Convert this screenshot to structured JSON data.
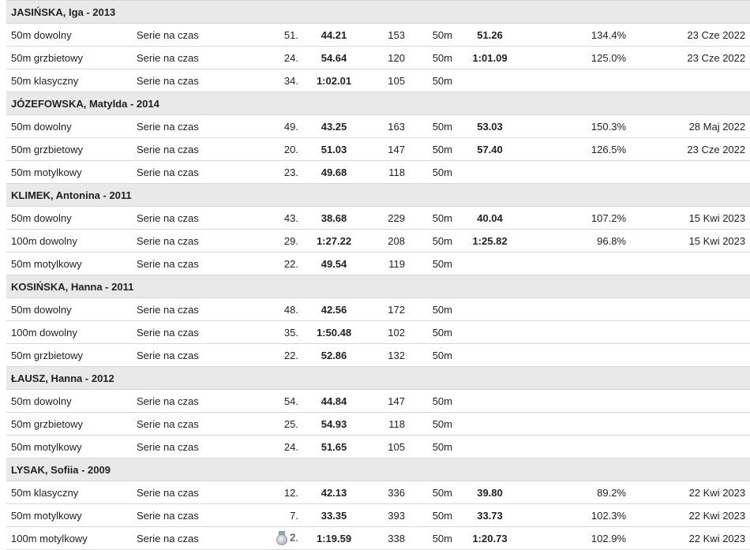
{
  "groups": [
    {
      "header": "JASIŃSKA, Iga - 2013",
      "rows": [
        {
          "event": "50m dowolny",
          "round": "Serie na czas",
          "place": "51.",
          "time": "44.21",
          "points": "153",
          "pool": "50m",
          "best": "51.26",
          "pct": "134.4%",
          "date": "23 Cze 2022"
        },
        {
          "event": "50m grzbietowy",
          "round": "Serie na czas",
          "place": "24.",
          "time": "54.64",
          "points": "120",
          "pool": "50m",
          "best": "1:01.09",
          "pct": "125.0%",
          "date": "23 Cze 2022"
        },
        {
          "event": "50m klasyczny",
          "round": "Serie na czas",
          "place": "34.",
          "time": "1:02.01",
          "points": "105",
          "pool": "50m",
          "best": "",
          "pct": "",
          "date": ""
        }
      ]
    },
    {
      "header": "JÓZEFOWSKA, Matylda - 2014",
      "rows": [
        {
          "event": "50m dowolny",
          "round": "Serie na czas",
          "place": "49.",
          "time": "43.25",
          "points": "163",
          "pool": "50m",
          "best": "53.03",
          "pct": "150.3%",
          "date": "28 Maj 2022"
        },
        {
          "event": "50m grzbietowy",
          "round": "Serie na czas",
          "place": "20.",
          "time": "51.03",
          "points": "147",
          "pool": "50m",
          "best": "57.40",
          "pct": "126.5%",
          "date": "23 Cze 2022"
        },
        {
          "event": "50m motylkowy",
          "round": "Serie na czas",
          "place": "23.",
          "time": "49.68",
          "points": "118",
          "pool": "50m",
          "best": "",
          "pct": "",
          "date": ""
        }
      ]
    },
    {
      "header": "KLIMEK, Antonina - 2011",
      "rows": [
        {
          "event": "50m dowolny",
          "round": "Serie na czas",
          "place": "43.",
          "time": "38.68",
          "points": "229",
          "pool": "50m",
          "best": "40.04",
          "pct": "107.2%",
          "date": "15 Kwi 2023"
        },
        {
          "event": "100m dowolny",
          "round": "Serie na czas",
          "place": "29.",
          "time": "1:27.22",
          "points": "208",
          "pool": "50m",
          "best": "1:25.82",
          "pct": "96.8%",
          "date": "15 Kwi 2023"
        },
        {
          "event": "50m motylkowy",
          "round": "Serie na czas",
          "place": "22.",
          "time": "49.54",
          "points": "119",
          "pool": "50m",
          "best": "",
          "pct": "",
          "date": ""
        }
      ]
    },
    {
      "header": "KOSIŃSKA, Hanna - 2011",
      "rows": [
        {
          "event": "50m dowolny",
          "round": "Serie na czas",
          "place": "48.",
          "time": "42.56",
          "points": "172",
          "pool": "50m",
          "best": "",
          "pct": "",
          "date": ""
        },
        {
          "event": "100m dowolny",
          "round": "Serie na czas",
          "place": "35.",
          "time": "1:50.48",
          "points": "102",
          "pool": "50m",
          "best": "",
          "pct": "",
          "date": ""
        },
        {
          "event": "50m grzbietowy",
          "round": "Serie na czas",
          "place": "22.",
          "time": "52.86",
          "points": "132",
          "pool": "50m",
          "best": "",
          "pct": "",
          "date": ""
        }
      ]
    },
    {
      "header": "ŁAUSZ, Hanna - 2012",
      "rows": [
        {
          "event": "50m dowolny",
          "round": "Serie na czas",
          "place": "54.",
          "time": "44.84",
          "points": "147",
          "pool": "50m",
          "best": "",
          "pct": "",
          "date": ""
        },
        {
          "event": "50m grzbietowy",
          "round": "Serie na czas",
          "place": "25.",
          "time": "54.93",
          "points": "118",
          "pool": "50m",
          "best": "",
          "pct": "",
          "date": ""
        },
        {
          "event": "50m motylkowy",
          "round": "Serie na czas",
          "place": "24.",
          "time": "51.65",
          "points": "105",
          "pool": "50m",
          "best": "",
          "pct": "",
          "date": ""
        }
      ]
    },
    {
      "header": "LYSAK, Sofiia - 2009",
      "rows": [
        {
          "event": "50m klasyczny",
          "round": "Serie na czas",
          "place": "12.",
          "time": "42.13",
          "points": "336",
          "pool": "50m",
          "best": "39.80",
          "pct": "89.2%",
          "date": "22 Kwi 2023"
        },
        {
          "event": "50m motylkowy",
          "round": "Serie na czas",
          "place": "7.",
          "time": "33.35",
          "points": "393",
          "pool": "50m",
          "best": "33.73",
          "pct": "102.3%",
          "date": "22 Kwi 2023"
        },
        {
          "event": "100m motylkowy",
          "round": "Serie na czas",
          "place": "2.",
          "medal": "silver-medal-icon",
          "time": "1:19.59",
          "points": "338",
          "pool": "50m",
          "best": "1:20.73",
          "pct": "102.9%",
          "date": "22 Kwi 2023"
        }
      ]
    }
  ]
}
